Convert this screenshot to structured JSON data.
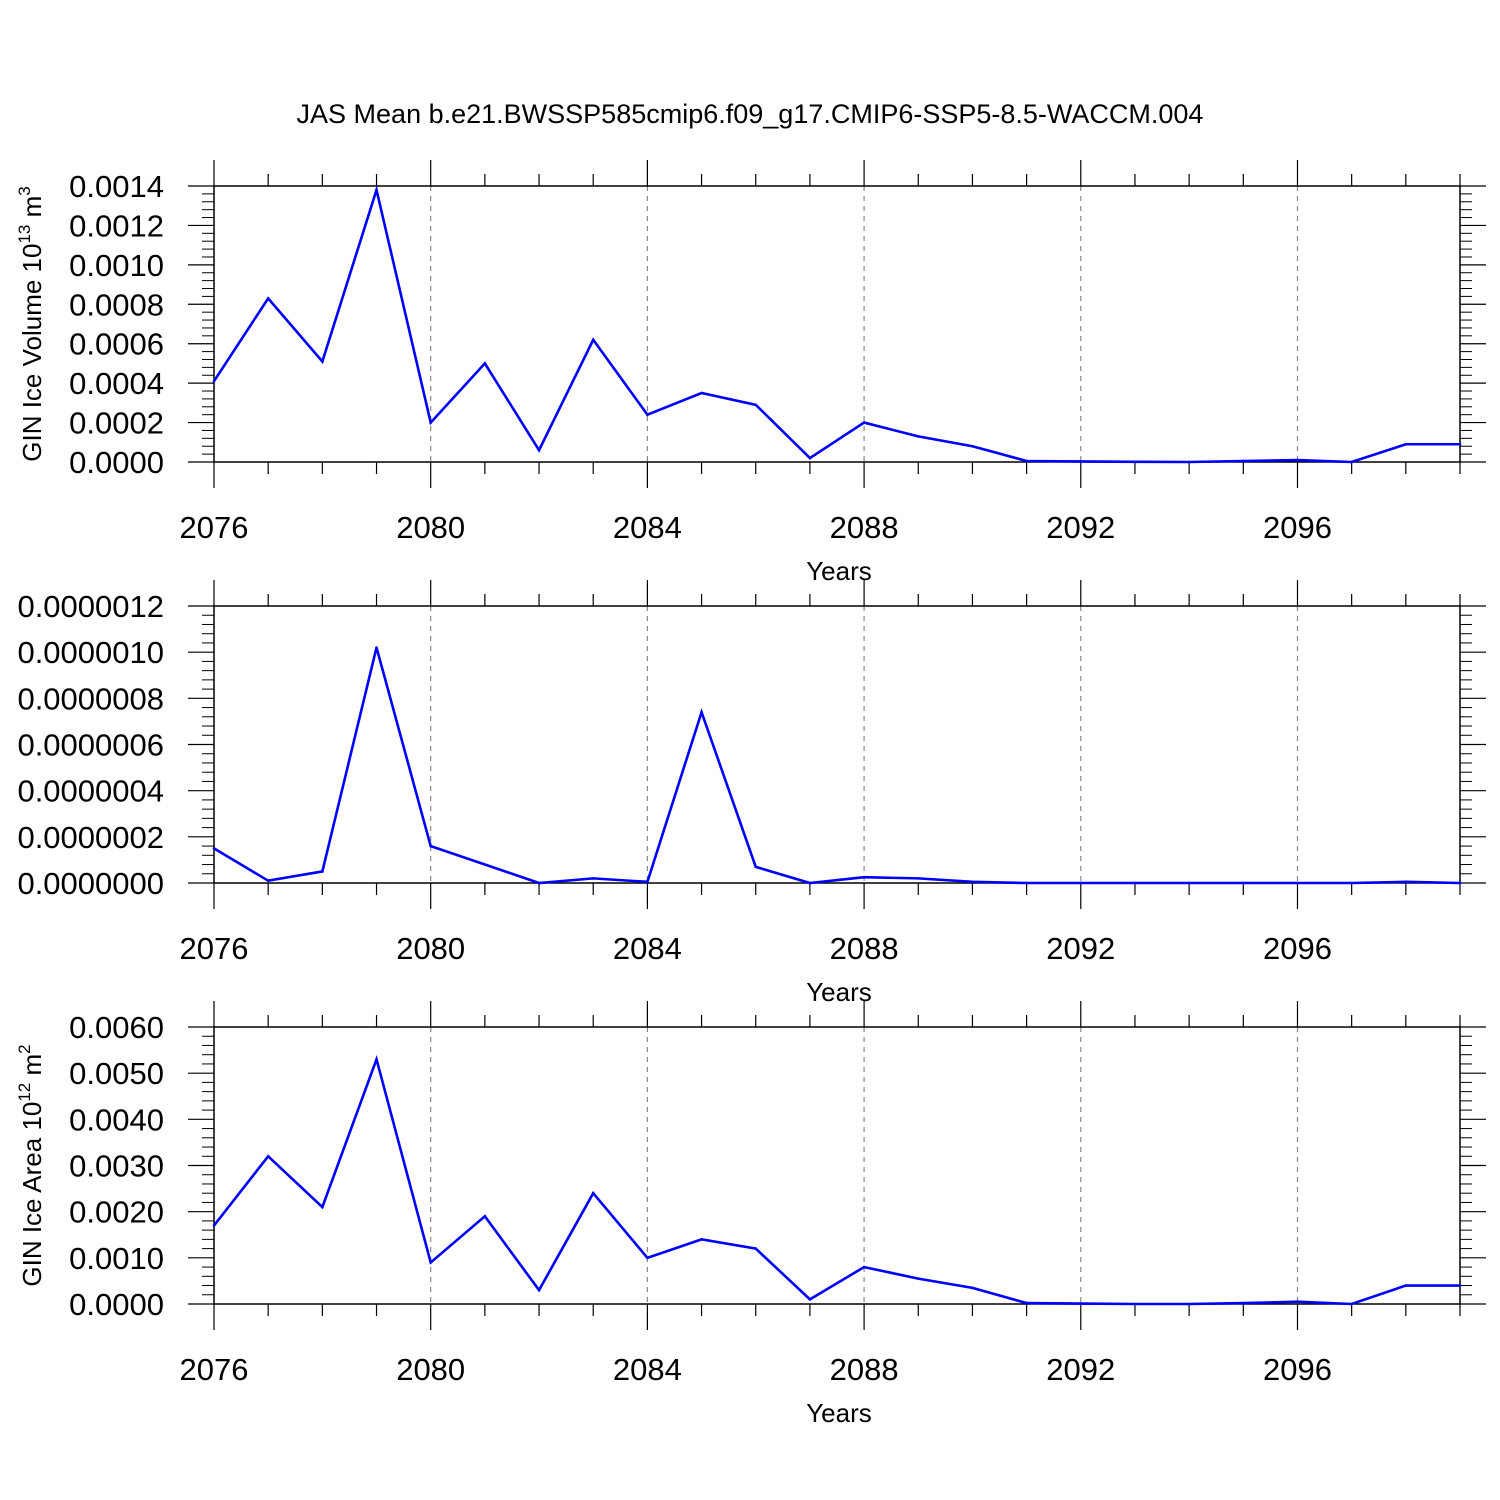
{
  "title": "JAS Mean b.e21.BWSSP585cmip6.f09_g17.CMIP6-SSP5-8.5-WACCM.004",
  "line_color": "#0000ff",
  "chart_data": [
    {
      "type": "line",
      "title": "JAS Mean b.e21.BWSSP585cmip6.f09_g17.CMIP6-SSP5-8.5-WACCM.004",
      "xlabel": "Years",
      "ylabel": "GIN Ice Volume 10",
      "ylabel_exp": "13",
      "ylabel_unit": " m",
      "ylabel_unit_exp": "3",
      "xlim": [
        2076,
        2099
      ],
      "ylim": [
        0,
        0.0014
      ],
      "x_ticks": [
        2076,
        2080,
        2084,
        2088,
        2092,
        2096
      ],
      "x_tick_labels": [
        "2076",
        "2080",
        "2084",
        "2088",
        "2092",
        "2096"
      ],
      "y_ticks": [
        0,
        0.0002,
        0.0004,
        0.0006,
        0.0008,
        0.001,
        0.0012,
        0.0014
      ],
      "y_tick_labels": [
        "0.0000",
        "0.0002",
        "0.0004",
        "0.0006",
        "0.0008",
        "0.0010",
        "0.0012",
        "0.0014"
      ],
      "grid": "vertical dashed at major x ticks",
      "x": [
        2076,
        2077,
        2078,
        2079,
        2080,
        2081,
        2082,
        2083,
        2084,
        2085,
        2086,
        2087,
        2088,
        2089,
        2090,
        2091,
        2092,
        2093,
        2094,
        2095,
        2096,
        2097,
        2098,
        2099
      ],
      "series": [
        {
          "values": [
            0.00041,
            0.00083,
            0.00051,
            0.00138,
            0.0002,
            0.0005,
            6e-05,
            0.00062,
            0.00024,
            0.00035,
            0.00029,
            2e-05,
            0.0002,
            0.00013,
            8e-05,
            5e-06,
            3e-06,
            1e-06,
            0.0,
            5e-06,
            1e-05,
            0.0,
            9e-05,
            9e-05
          ]
        }
      ]
    },
    {
      "type": "line",
      "xlabel": "Years",
      "ylabel": "",
      "xlim": [
        2076,
        2099
      ],
      "ylim": [
        0,
        1.2e-06
      ],
      "x_ticks": [
        2076,
        2080,
        2084,
        2088,
        2092,
        2096
      ],
      "x_tick_labels": [
        "2076",
        "2080",
        "2084",
        "2088",
        "2092",
        "2096"
      ],
      "y_ticks": [
        0,
        2e-07,
        4e-07,
        6e-07,
        8e-07,
        1e-06,
        1.2e-06
      ],
      "y_tick_labels": [
        "0.0000000",
        "0.0000002",
        "0.0000004",
        "0.0000006",
        "0.0000008",
        "0.0000010",
        "0.0000012"
      ],
      "grid": "vertical dashed at major x ticks",
      "x": [
        2076,
        2077,
        2078,
        2079,
        2080,
        2081,
        2082,
        2083,
        2084,
        2085,
        2086,
        2087,
        2088,
        2089,
        2090,
        2091,
        2092,
        2093,
        2094,
        2095,
        2096,
        2097,
        2098,
        2099
      ],
      "series": [
        {
          "values": [
            1.5e-07,
            1e-08,
            5e-08,
            1.02e-06,
            1.6e-07,
            8e-08,
            0.0,
            2e-08,
            5e-09,
            7.4e-07,
            7e-08,
            0.0,
            2.5e-08,
            2e-08,
            5e-09,
            0.0,
            0.0,
            0.0,
            0.0,
            0.0,
            0.0,
            0.0,
            5e-09,
            0.0
          ]
        }
      ]
    },
    {
      "type": "line",
      "xlabel": "Years",
      "ylabel": "GIN Ice Area 10",
      "ylabel_exp": "12",
      "ylabel_unit": " m",
      "ylabel_unit_exp": "2",
      "xlim": [
        2076,
        2099
      ],
      "ylim": [
        0,
        0.006
      ],
      "x_ticks": [
        2076,
        2080,
        2084,
        2088,
        2092,
        2096
      ],
      "x_tick_labels": [
        "2076",
        "2080",
        "2084",
        "2088",
        "2092",
        "2096"
      ],
      "y_ticks": [
        0,
        0.001,
        0.002,
        0.003,
        0.004,
        0.005,
        0.006
      ],
      "y_tick_labels": [
        "0.0000",
        "0.0010",
        "0.0020",
        "0.0030",
        "0.0040",
        "0.0050",
        "0.0060"
      ],
      "grid": "vertical dashed at major x ticks",
      "x": [
        2076,
        2077,
        2078,
        2079,
        2080,
        2081,
        2082,
        2083,
        2084,
        2085,
        2086,
        2087,
        2088,
        2089,
        2090,
        2091,
        2092,
        2093,
        2094,
        2095,
        2096,
        2097,
        2098,
        2099
      ],
      "series": [
        {
          "values": [
            0.0017,
            0.0032,
            0.0021,
            0.0053,
            0.0009,
            0.0019,
            0.0003,
            0.0024,
            0.001,
            0.0014,
            0.0012,
            0.0001,
            0.0008,
            0.00055,
            0.00035,
            2e-05,
            1e-05,
            0.0,
            0.0,
            2e-05,
            5e-05,
            0.0,
            0.0004,
            0.0004
          ]
        }
      ]
    }
  ]
}
